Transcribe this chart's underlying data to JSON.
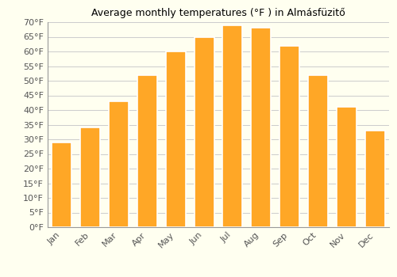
{
  "title": "Average monthly temperatures (°F ) in Almásfüzitő",
  "months": [
    "Jan",
    "Feb",
    "Mar",
    "Apr",
    "May",
    "Jun",
    "Jul",
    "Aug",
    "Sep",
    "Oct",
    "Nov",
    "Dec"
  ],
  "values": [
    29,
    34,
    43,
    52,
    60,
    65,
    69,
    68,
    62,
    52,
    41,
    33
  ],
  "bar_color": "#FFA726",
  "bar_edge_color": "#FFFFFF",
  "ylim": [
    0,
    70
  ],
  "yticks": [
    0,
    5,
    10,
    15,
    20,
    25,
    30,
    35,
    40,
    45,
    50,
    55,
    60,
    65,
    70
  ],
  "ytick_labels": [
    "0°F",
    "5°F",
    "10°F",
    "15°F",
    "20°F",
    "25°F",
    "30°F",
    "35°F",
    "40°F",
    "45°F",
    "50°F",
    "55°F",
    "60°F",
    "65°F",
    "70°F"
  ],
  "background_color": "#FFFFF0",
  "plot_bg_color": "#FFFFF0",
  "title_fontsize": 9,
  "tick_fontsize": 8,
  "bar_width": 0.7,
  "grid_color": "#CCCCCC"
}
